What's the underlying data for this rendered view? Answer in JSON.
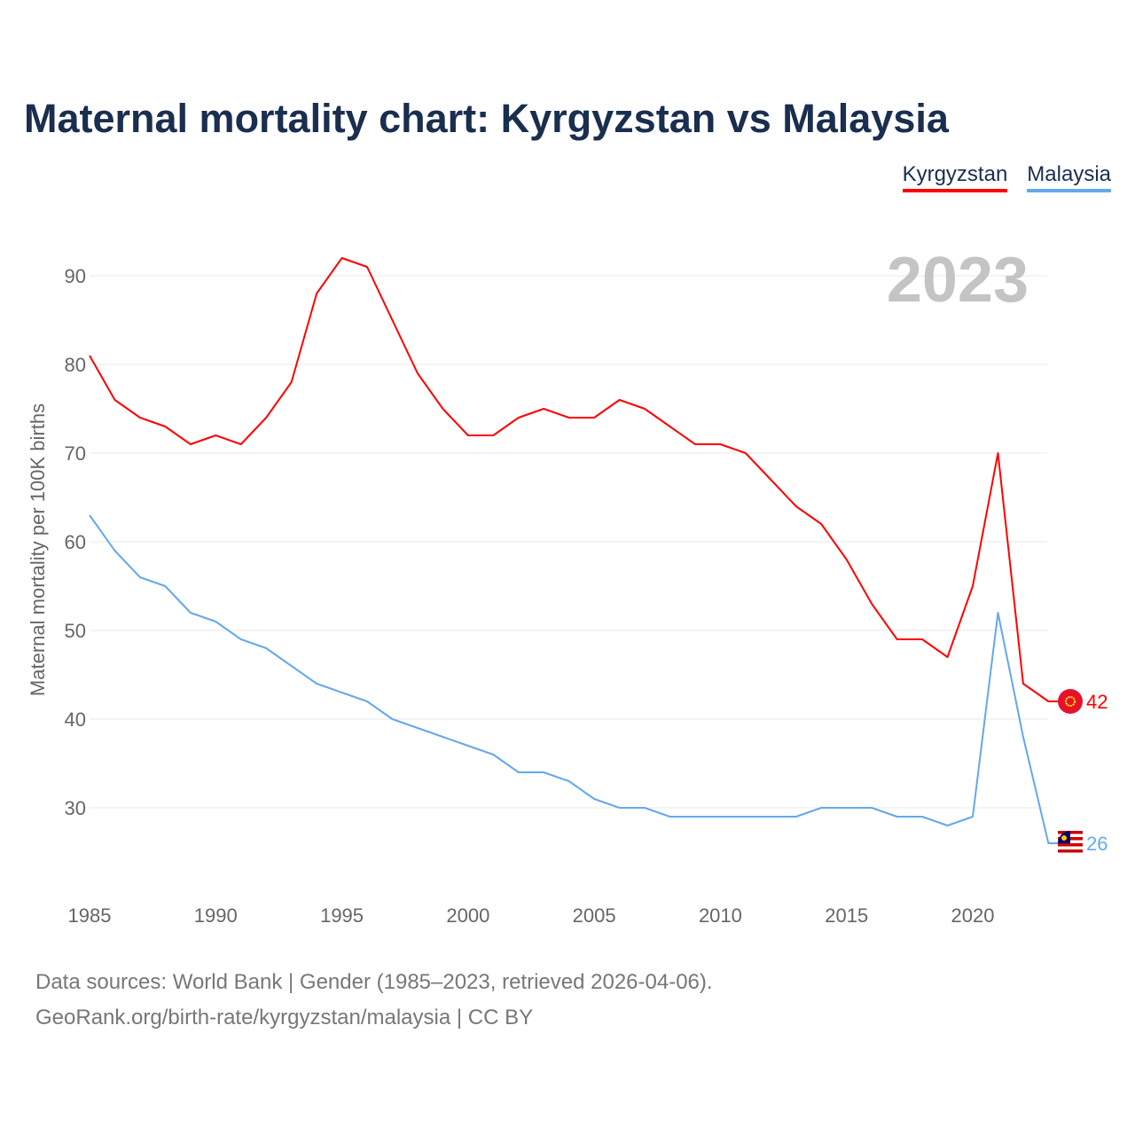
{
  "title": "Maternal mortality chart: Kyrgyzstan vs Malaysia",
  "legend": [
    {
      "label": "Kyrgyzstan",
      "color": "#ff0000"
    },
    {
      "label": "Malaysia",
      "color": "#64a8ec"
    }
  ],
  "footer": {
    "line1": "Data sources: World Bank | Gender (1985–2023, retrieved 2026-04-06).",
    "line2": "GeoRank.org/birth-rate/kyrgyzstan/malaysia | CC BY"
  },
  "chart_data": {
    "type": "line",
    "title": "Maternal mortality chart: Kyrgyzstan vs Malaysia",
    "year_label": "2023",
    "xlabel": "",
    "ylabel": "Maternal mortality per 100K births",
    "xlim": [
      1985,
      2023
    ],
    "ylim": [
      20,
      97
    ],
    "xticks": [
      1985,
      1990,
      1995,
      2000,
      2005,
      2010,
      2015,
      2020
    ],
    "yticks": [
      30,
      40,
      50,
      60,
      70,
      80,
      90
    ],
    "x": [
      1985,
      1986,
      1987,
      1988,
      1989,
      1990,
      1991,
      1992,
      1993,
      1994,
      1995,
      1996,
      1997,
      1998,
      1999,
      2000,
      2001,
      2002,
      2003,
      2004,
      2005,
      2006,
      2007,
      2008,
      2009,
      2010,
      2011,
      2012,
      2013,
      2014,
      2015,
      2016,
      2017,
      2018,
      2019,
      2020,
      2021,
      2022,
      2023
    ],
    "series": [
      {
        "name": "Kyrgyzstan",
        "color": "#ff0000",
        "end_label": "42",
        "values": [
          81,
          76,
          74,
          73,
          71,
          72,
          71,
          74,
          78,
          88,
          92,
          91,
          85,
          79,
          75,
          72,
          72,
          74,
          75,
          74,
          74,
          76,
          75,
          73,
          71,
          71,
          70,
          67,
          64,
          62,
          58,
          53,
          49,
          49,
          47,
          55,
          70,
          44,
          42
        ]
      },
      {
        "name": "Malaysia",
        "color": "#64a8ec",
        "end_label": "26",
        "values": [
          63,
          59,
          56,
          55,
          52,
          51,
          49,
          48,
          46,
          44,
          43,
          42,
          40,
          39,
          38,
          37,
          36,
          34,
          34,
          33,
          31,
          30,
          30,
          29,
          29,
          29,
          29,
          29,
          29,
          30,
          30,
          30,
          29,
          29,
          28,
          29,
          52,
          38,
          26
        ]
      }
    ]
  }
}
